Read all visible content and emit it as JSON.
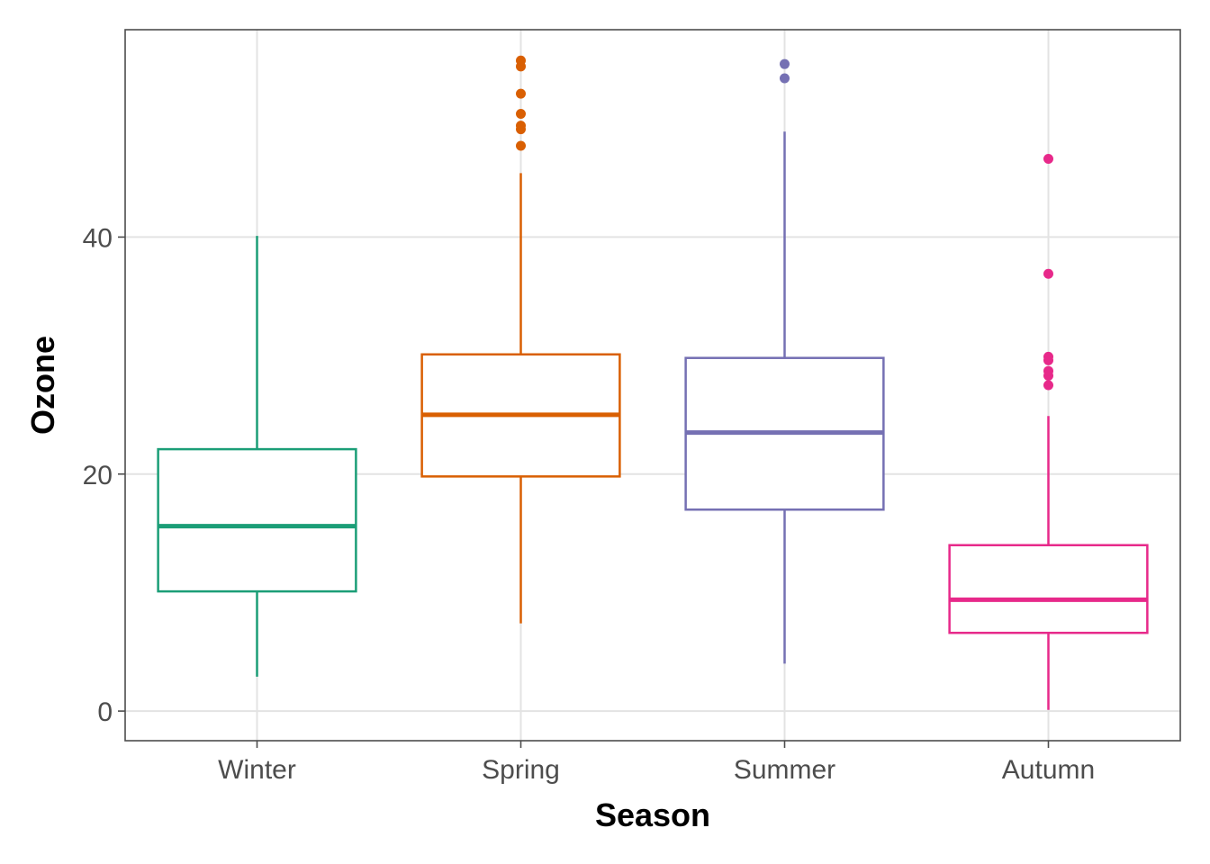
{
  "chart_data": {
    "type": "boxplot",
    "xlabel": "Season",
    "ylabel": "Ozone",
    "ylim": [
      -2.5,
      57.5
    ],
    "yticks": [
      0,
      20,
      40
    ],
    "grid": true,
    "legend": "none",
    "categories": [
      "Winter",
      "Spring",
      "Summer",
      "Autumn"
    ],
    "boxes": [
      {
        "category": "Winter",
        "color": "#1b9e77",
        "whisker_low": 2.9,
        "q1": 10.1,
        "median": 15.6,
        "q3": 22.1,
        "whisker_high": 40.1,
        "outliers": []
      },
      {
        "category": "Spring",
        "color": "#d95f02",
        "whisker_low": 7.4,
        "q1": 19.8,
        "median": 25.0,
        "q3": 30.1,
        "whisker_high": 45.4,
        "outliers": [
          47.7,
          49.1,
          49.4,
          50.4,
          52.1,
          54.4,
          54.9
        ]
      },
      {
        "category": "Summer",
        "color": "#7570b3",
        "whisker_low": 4.0,
        "q1": 17.0,
        "median": 23.5,
        "q3": 29.8,
        "whisker_high": 48.9,
        "outliers": [
          53.4,
          54.6
        ]
      },
      {
        "category": "Autumn",
        "color": "#e7298a",
        "whisker_low": 0.1,
        "q1": 6.6,
        "median": 9.4,
        "q3": 14.0,
        "whisker_high": 24.9,
        "outliers": [
          27.5,
          28.3,
          28.7,
          29.6,
          29.9,
          36.9,
          46.6
        ]
      }
    ]
  }
}
